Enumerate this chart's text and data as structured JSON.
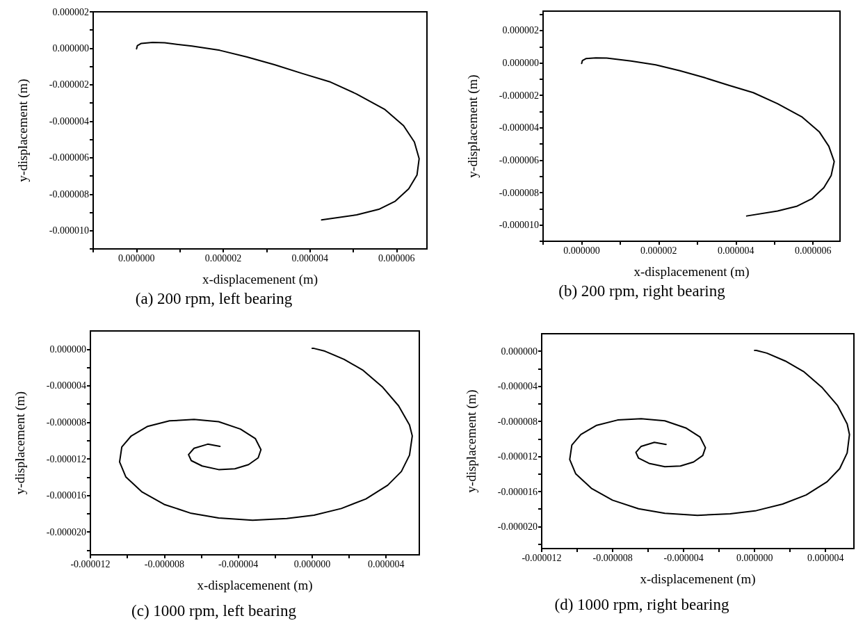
{
  "chart_data": [
    {
      "type": "line",
      "title": "(a) 200 rpm, left bearing",
      "xlabel": "x-displacemenent (m)",
      "ylabel": "y-displacement (m)",
      "grid": false,
      "marker": "none",
      "xlim": [
        -1e-06,
        6.7e-06
      ],
      "ylim": [
        -1.1e-05,
        2e-06
      ],
      "xticks": [
        {
          "value": -1e-06,
          "label": null
        },
        {
          "value": 0,
          "label": "0.000000"
        },
        {
          "value": 1e-06,
          "label": null
        },
        {
          "value": 2e-06,
          "label": "0.000002"
        },
        {
          "value": 3e-06,
          "label": null
        },
        {
          "value": 4e-06,
          "label": "0.000004"
        },
        {
          "value": 5e-06,
          "label": null
        },
        {
          "value": 6e-06,
          "label": "0.000006"
        }
      ],
      "yticks": [
        {
          "value": 2e-06,
          "label": "0.000002"
        },
        {
          "value": 1e-06,
          "label": null
        },
        {
          "value": 0,
          "label": "0.000000"
        },
        {
          "value": -1e-06,
          "label": null
        },
        {
          "value": -2e-06,
          "label": "-0.000002"
        },
        {
          "value": -3e-06,
          "label": null
        },
        {
          "value": -4e-06,
          "label": "-0.000004"
        },
        {
          "value": -5e-06,
          "label": null
        },
        {
          "value": -6e-06,
          "label": "-0.000006"
        },
        {
          "value": -7e-06,
          "label": null
        },
        {
          "value": -8e-06,
          "label": "-0.000008"
        },
        {
          "value": -9e-06,
          "label": null
        },
        {
          "value": -1e-05,
          "label": "-0.000010"
        },
        {
          "value": -1.1e-05,
          "label": null
        }
      ],
      "series": [
        {
          "color": "#000000",
          "x": [
            0,
            2e-08,
            1.1e-07,
            3.7e-07,
            6.5e-07,
            1.28e-06,
            1.92e-06,
            2.55e-06,
            3.18e-06,
            3.82e-06,
            4.45e-06,
            5.08e-06,
            5.72e-06,
            6.16e-06,
            6.41e-06,
            6.52e-06,
            6.47e-06,
            6.28e-06,
            5.97e-06,
            5.59e-06,
            5.08e-06,
            4.27e-06
          ],
          "values": [
            -3e-08,
            1.5e-07,
            2.7e-07,
            3.2e-07,
            3e-07,
            1.2e-07,
            -1.1e-07,
            -4.8e-07,
            -9e-07,
            -1.38e-06,
            -1.83e-06,
            -2.51e-06,
            -3.34e-06,
            -4.24e-06,
            -5.14e-06,
            -6.05e-06,
            -6.95e-06,
            -7.7e-06,
            -8.38e-06,
            -8.83e-06,
            -9.13e-06,
            -9.41e-06
          ]
        }
      ]
    },
    {
      "type": "line",
      "title": "(b) 200 rpm, right bearing",
      "xlabel": "x-displacemenent (m)",
      "ylabel": "y-displacement (m)",
      "grid": false,
      "marker": "none",
      "xlim": [
        -1e-06,
        6.7e-06
      ],
      "ylim": [
        -1.1e-05,
        3.2e-06
      ],
      "xticks": [
        {
          "value": -1e-06,
          "label": null
        },
        {
          "value": 0,
          "label": "0.000000"
        },
        {
          "value": 1e-06,
          "label": null
        },
        {
          "value": 2e-06,
          "label": "0.000002"
        },
        {
          "value": 3e-06,
          "label": null
        },
        {
          "value": 4e-06,
          "label": "0.000004"
        },
        {
          "value": 5e-06,
          "label": null
        },
        {
          "value": 6e-06,
          "label": "0.000006"
        }
      ],
      "yticks": [
        {
          "value": 3e-06,
          "label": null
        },
        {
          "value": 2e-06,
          "label": "0.000002"
        },
        {
          "value": 1e-06,
          "label": null
        },
        {
          "value": 0,
          "label": "0.000000"
        },
        {
          "value": -1e-06,
          "label": null
        },
        {
          "value": -2e-06,
          "label": "-0.000002"
        },
        {
          "value": -3e-06,
          "label": null
        },
        {
          "value": -4e-06,
          "label": "-0.000004"
        },
        {
          "value": -5e-06,
          "label": null
        },
        {
          "value": -6e-06,
          "label": "-0.000006"
        },
        {
          "value": -7e-06,
          "label": null
        },
        {
          "value": -8e-06,
          "label": "-0.000008"
        },
        {
          "value": -9e-06,
          "label": null
        },
        {
          "value": -1e-05,
          "label": "-0.000010"
        },
        {
          "value": -1.1e-05,
          "label": null
        }
      ],
      "series": [
        {
          "color": "#000000",
          "x": [
            0,
            2e-08,
            1.1e-07,
            3.7e-07,
            6.5e-07,
            1.28e-06,
            1.92e-06,
            2.55e-06,
            3.18e-06,
            3.82e-06,
            4.45e-06,
            5.08e-06,
            5.72e-06,
            6.16e-06,
            6.41e-06,
            6.55e-06,
            6.47e-06,
            6.28e-06,
            5.97e-06,
            5.59e-06,
            5.08e-06,
            4.28e-06
          ],
          "values": [
            -3e-08,
            1.5e-07,
            2.7e-07,
            3.1e-07,
            3e-07,
            1.2e-07,
            -1.1e-07,
            -4.8e-07,
            -9e-07,
            -1.38e-06,
            -1.83e-06,
            -2.51e-06,
            -3.34e-06,
            -4.24e-06,
            -5.14e-06,
            -6.08e-06,
            -6.95e-06,
            -7.7e-06,
            -8.38e-06,
            -8.83e-06,
            -9.13e-06,
            -9.44e-06
          ]
        }
      ]
    },
    {
      "type": "line",
      "title": "(c) 1000 rpm, left bearing",
      "xlabel": "x-displacemenent (m)",
      "ylabel": "y-displacement (m)",
      "grid": false,
      "marker": "none",
      "xlim": [
        -1.2e-05,
        5.8e-06
      ],
      "ylim": [
        -2.25e-05,
        2e-06
      ],
      "xticks": [
        {
          "value": -1.2e-05,
          "label": "-0.000012"
        },
        {
          "value": -1e-05,
          "label": null
        },
        {
          "value": -8e-06,
          "label": "-0.000008"
        },
        {
          "value": -6e-06,
          "label": null
        },
        {
          "value": -4e-06,
          "label": "-0.000004"
        },
        {
          "value": -2e-06,
          "label": null
        },
        {
          "value": 0,
          "label": "0.000000"
        },
        {
          "value": 2e-06,
          "label": null
        },
        {
          "value": 4e-06,
          "label": "0.000004"
        }
      ],
      "yticks": [
        {
          "value": 0,
          "label": "0.000000"
        },
        {
          "value": -2e-06,
          "label": null
        },
        {
          "value": -4e-06,
          "label": "-0.000004"
        },
        {
          "value": -6e-06,
          "label": null
        },
        {
          "value": -8e-06,
          "label": "-0.000008"
        },
        {
          "value": -1e-05,
          "label": null
        },
        {
          "value": -1.2e-05,
          "label": "-0.000012"
        },
        {
          "value": -1.4e-05,
          "label": null
        },
        {
          "value": -1.6e-05,
          "label": "-0.000016"
        },
        {
          "value": -1.8e-05,
          "label": null
        },
        {
          "value": -2e-05,
          "label": "-0.000020"
        },
        {
          "value": -2.2e-05,
          "label": null
        }
      ],
      "series": [
        {
          "color": "#000000",
          "x": [
            0,
            1e-07,
            6.9e-07,
            1.73e-06,
            2.76e-06,
            3.79e-06,
            4.68e-06,
            5.27e-06,
            5.42e-06,
            5.27e-06,
            4.83e-06,
            4.09e-06,
            2.91e-06,
            1.58e-06,
            1e-07,
            -1.37e-06,
            -3.22e-06,
            -5.06e-06,
            -6.54e-06,
            -8.01e-06,
            -9.2e-06,
            -1.008e-05,
            -1.042e-05,
            -1.03e-05,
            -9.79e-06,
            -8.9e-06,
            -7.72e-06,
            -6.39e-06,
            -5.06e-06,
            -3.88e-06,
            -3.07e-06,
            -2.77e-06,
            -2.92e-06,
            -3.44e-06,
            -4.18e-06,
            -5.06e-06,
            -5.95e-06,
            -6.54e-06,
            -6.69e-06,
            -6.39e-06,
            -5.65e-06,
            -4.99e-06
          ],
          "values": [
            9e-08,
            9e-08,
            -2.1e-07,
            -1.11e-06,
            -2.31e-06,
            -4.1e-06,
            -6.2e-06,
            -8.29e-06,
            -9.49e-06,
            -1.159e-05,
            -1.338e-05,
            -1.488e-05,
            -1.638e-05,
            -1.743e-05,
            -1.817e-05,
            -1.853e-05,
            -1.871e-05,
            -1.847e-05,
            -1.796e-05,
            -1.698e-05,
            -1.563e-05,
            -1.398e-05,
            -1.234e-05,
            -1.069e-05,
            -9.49e-06,
            -8.44e-06,
            -7.84e-06,
            -7.69e-06,
            -7.93e-06,
            -8.74e-06,
            -9.79e-06,
            -1.099e-05,
            -1.189e-05,
            -1.263e-05,
            -1.308e-05,
            -1.317e-05,
            -1.278e-05,
            -1.219e-05,
            -1.153e-05,
            -1.084e-05,
            -1.039e-05,
            -1.063e-05
          ]
        }
      ]
    },
    {
      "type": "line",
      "title": "(d) 1000 rpm, right bearing",
      "xlabel": "x-displacemenent (m)",
      "ylabel": "y-displacement (m)",
      "grid": false,
      "marker": "none",
      "xlim": [
        -1.2e-05,
        5.6e-06
      ],
      "ylim": [
        -2.25e-05,
        2e-06
      ],
      "xticks": [
        {
          "value": -1.2e-05,
          "label": "-0.000012"
        },
        {
          "value": -1e-05,
          "label": null
        },
        {
          "value": -8e-06,
          "label": "-0.000008"
        },
        {
          "value": -6e-06,
          "label": null
        },
        {
          "value": -4e-06,
          "label": "-0.000004"
        },
        {
          "value": -2e-06,
          "label": null
        },
        {
          "value": 0,
          "label": "0.000000"
        },
        {
          "value": 2e-06,
          "label": null
        },
        {
          "value": 4e-06,
          "label": "0.000004"
        }
      ],
      "yticks": [
        {
          "value": 0,
          "label": "0.000000"
        },
        {
          "value": -2e-06,
          "label": null
        },
        {
          "value": -4e-06,
          "label": "-0.000004"
        },
        {
          "value": -6e-06,
          "label": null
        },
        {
          "value": -8e-06,
          "label": "-0.000008"
        },
        {
          "value": -1e-05,
          "label": null
        },
        {
          "value": -1.2e-05,
          "label": "-0.000012"
        },
        {
          "value": -1.4e-05,
          "label": null
        },
        {
          "value": -1.6e-05,
          "label": "-0.000016"
        },
        {
          "value": -1.8e-05,
          "label": null
        },
        {
          "value": -2e-05,
          "label": "-0.000020"
        },
        {
          "value": -2.2e-05,
          "label": null
        }
      ],
      "series": [
        {
          "color": "#000000",
          "x": [
            0,
            1e-07,
            6.9e-07,
            1.73e-06,
            2.76e-06,
            3.79e-06,
            4.68e-06,
            5.22e-06,
            5.35e-06,
            5.22e-06,
            4.8e-06,
            4.09e-06,
            2.91e-06,
            1.58e-06,
            1e-07,
            -1.37e-06,
            -3.22e-06,
            -5.06e-06,
            -6.54e-06,
            -8.01e-06,
            -9.2e-06,
            -1.008e-05,
            -1.042e-05,
            -1.03e-05,
            -9.79e-06,
            -8.9e-06,
            -7.72e-06,
            -6.39e-06,
            -5.06e-06,
            -3.88e-06,
            -3.07e-06,
            -2.77e-06,
            -2.92e-06,
            -3.44e-06,
            -4.18e-06,
            -5.06e-06,
            -5.95e-06,
            -6.54e-06,
            -6.69e-06,
            -6.39e-06,
            -5.65e-06,
            -4.99e-06
          ],
          "values": [
            9e-08,
            9e-08,
            -2.1e-07,
            -1.11e-06,
            -2.31e-06,
            -4.1e-06,
            -6.2e-06,
            -8.29e-06,
            -9.49e-06,
            -1.159e-05,
            -1.338e-05,
            -1.488e-05,
            -1.638e-05,
            -1.743e-05,
            -1.817e-05,
            -1.853e-05,
            -1.871e-05,
            -1.847e-05,
            -1.796e-05,
            -1.698e-05,
            -1.563e-05,
            -1.398e-05,
            -1.234e-05,
            -1.069e-05,
            -9.49e-06,
            -8.44e-06,
            -7.84e-06,
            -7.69e-06,
            -7.93e-06,
            -8.74e-06,
            -9.79e-06,
            -1.099e-05,
            -1.189e-05,
            -1.263e-05,
            -1.308e-05,
            -1.317e-05,
            -1.278e-05,
            -1.219e-05,
            -1.153e-05,
            -1.084e-05,
            -1.039e-05,
            -1.063e-05
          ]
        }
      ]
    }
  ]
}
